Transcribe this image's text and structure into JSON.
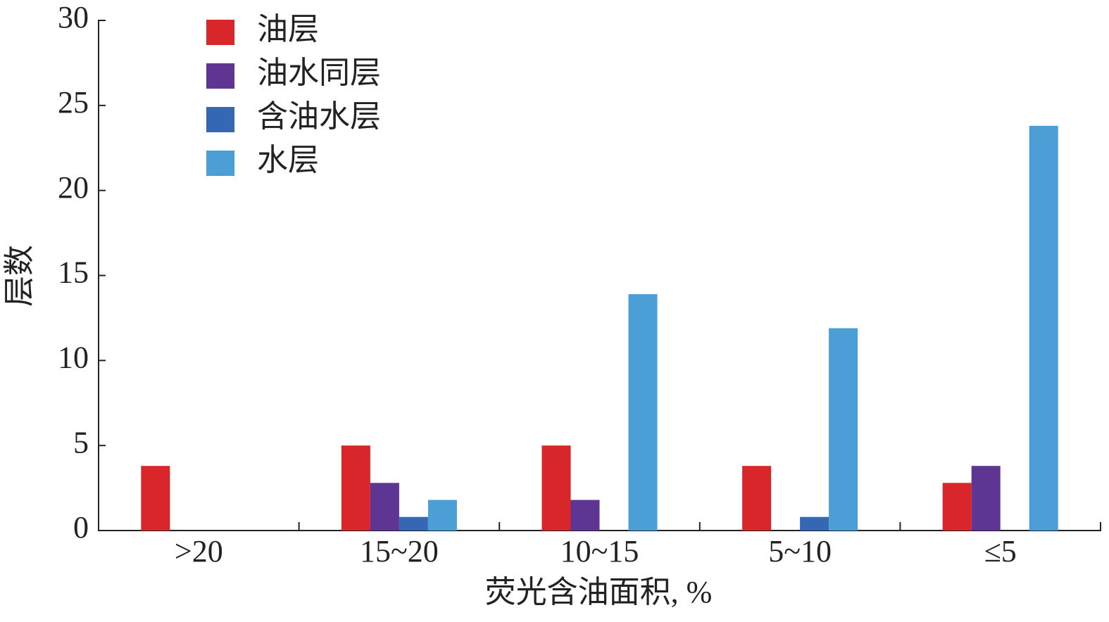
{
  "chart_data": {
    "type": "bar",
    "x_label": "荧光含油面积, %",
    "y_label": "层数",
    "categories": [
      ">20",
      "15~20",
      "10~15",
      "5~10",
      "≤5"
    ],
    "series": [
      {
        "name": "油层",
        "color": "#d9262a",
        "values": [
          3.8,
          5,
          5,
          3.8,
          2.8
        ]
      },
      {
        "name": "油水同层",
        "color": "#5e3592",
        "values": [
          0,
          2.8,
          1.8,
          0,
          3.8
        ]
      },
      {
        "name": "含油水层",
        "color": "#3568b4",
        "values": [
          0,
          0.8,
          0,
          0.8,
          0
        ]
      },
      {
        "name": "水层",
        "color": "#4b9fd6",
        "values": [
          0,
          1.8,
          13.9,
          11.9,
          23.8
        ]
      }
    ],
    "ylim": [
      0,
      30
    ],
    "yticks": [
      0,
      5,
      10,
      15,
      20,
      25,
      30
    ],
    "legend": "upper-left",
    "grid": false
  }
}
